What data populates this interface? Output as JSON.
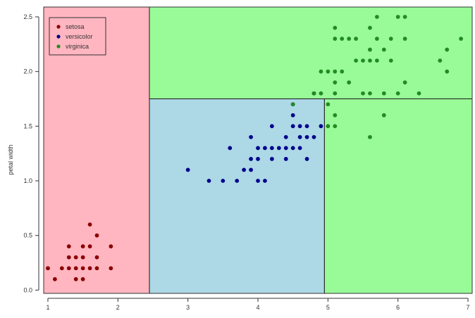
{
  "chart_data": {
    "type": "scatter",
    "title": "",
    "xlabel": "",
    "ylabel": "petal width",
    "xlim": [
      1.0,
      7.0
    ],
    "ylim": [
      0.0,
      2.5
    ],
    "xlim_plot": [
      0.94,
      7.06
    ],
    "ylim_plot": [
      -0.03,
      2.59
    ],
    "x_ticks": [
      1,
      2,
      3,
      4,
      5,
      6,
      7
    ],
    "x_tick_labels": [
      "1",
      "2",
      "3",
      "4",
      "5",
      "6",
      "7"
    ],
    "y_ticks": [
      0.0,
      0.5,
      1.0,
      1.5,
      2.0,
      2.5
    ],
    "y_tick_labels": [
      "0.0",
      "0.5",
      "1.0",
      "1.5",
      "2.0",
      "2.5"
    ],
    "grid": false,
    "legend_position": "top-left",
    "regions": [
      {
        "class": "setosa",
        "x": [
          0.94,
          2.45
        ],
        "y": [
          -0.03,
          2.59
        ],
        "color": "#ffb6c1"
      },
      {
        "class": "versicolor",
        "x": [
          2.45,
          4.95
        ],
        "y": [
          -0.03,
          1.75
        ],
        "color": "#add8e6"
      },
      {
        "class": "virginica",
        "x": [
          4.95,
          7.06
        ],
        "y": [
          -0.03,
          1.75
        ],
        "color": "#98fb98"
      },
      {
        "class": "virginica",
        "x": [
          2.45,
          7.06
        ],
        "y": [
          1.75,
          2.59
        ],
        "color": "#98fb98"
      }
    ],
    "series": [
      {
        "name": "setosa",
        "color": "#8b0000",
        "points": [
          [
            1.0,
            0.2
          ],
          [
            1.1,
            0.1
          ],
          [
            1.2,
            0.2
          ],
          [
            1.3,
            0.2
          ],
          [
            1.3,
            0.3
          ],
          [
            1.3,
            0.4
          ],
          [
            1.4,
            0.1
          ],
          [
            1.4,
            0.2
          ],
          [
            1.4,
            0.3
          ],
          [
            1.5,
            0.1
          ],
          [
            1.5,
            0.2
          ],
          [
            1.5,
            0.3
          ],
          [
            1.5,
            0.4
          ],
          [
            1.6,
            0.2
          ],
          [
            1.6,
            0.4
          ],
          [
            1.6,
            0.6
          ],
          [
            1.7,
            0.2
          ],
          [
            1.7,
            0.3
          ],
          [
            1.7,
            0.5
          ],
          [
            1.9,
            0.2
          ],
          [
            1.9,
            0.4
          ]
        ]
      },
      {
        "name": "versicolor",
        "color": "#00008b",
        "points": [
          [
            3.0,
            1.1
          ],
          [
            3.3,
            1.0
          ],
          [
            3.5,
            1.0
          ],
          [
            3.6,
            1.3
          ],
          [
            3.7,
            1.0
          ],
          [
            3.8,
            1.1
          ],
          [
            3.9,
            1.1
          ],
          [
            3.9,
            1.2
          ],
          [
            3.9,
            1.4
          ],
          [
            4.0,
            1.0
          ],
          [
            4.0,
            1.2
          ],
          [
            4.0,
            1.3
          ],
          [
            4.1,
            1.0
          ],
          [
            4.1,
            1.3
          ],
          [
            4.2,
            1.2
          ],
          [
            4.2,
            1.3
          ],
          [
            4.2,
            1.5
          ],
          [
            4.3,
            1.3
          ],
          [
            4.4,
            1.2
          ],
          [
            4.4,
            1.3
          ],
          [
            4.4,
            1.4
          ],
          [
            4.5,
            1.3
          ],
          [
            4.5,
            1.5
          ],
          [
            4.5,
            1.6
          ],
          [
            4.6,
            1.3
          ],
          [
            4.6,
            1.4
          ],
          [
            4.6,
            1.5
          ],
          [
            4.7,
            1.2
          ],
          [
            4.7,
            1.4
          ],
          [
            4.7,
            1.5
          ],
          [
            4.8,
            1.4
          ],
          [
            4.9,
            1.5
          ],
          [
            4.5,
            1.7
          ],
          [
            4.8,
            1.8
          ]
        ]
      },
      {
        "name": "virginica",
        "color": "#228b22",
        "points": [
          [
            4.5,
            1.7
          ],
          [
            4.8,
            1.8
          ],
          [
            4.9,
            1.8
          ],
          [
            4.9,
            2.0
          ],
          [
            5.0,
            1.5
          ],
          [
            5.0,
            1.7
          ],
          [
            5.0,
            2.0
          ],
          [
            5.1,
            1.5
          ],
          [
            5.1,
            1.6
          ],
          [
            5.1,
            1.8
          ],
          [
            5.1,
            1.9
          ],
          [
            5.1,
            2.0
          ],
          [
            5.1,
            2.3
          ],
          [
            5.1,
            2.4
          ],
          [
            5.2,
            2.0
          ],
          [
            5.2,
            2.3
          ],
          [
            5.3,
            1.9
          ],
          [
            5.3,
            2.3
          ],
          [
            5.4,
            2.1
          ],
          [
            5.4,
            2.3
          ],
          [
            5.5,
            1.8
          ],
          [
            5.5,
            2.1
          ],
          [
            5.6,
            1.4
          ],
          [
            5.6,
            1.8
          ],
          [
            5.6,
            2.1
          ],
          [
            5.6,
            2.2
          ],
          [
            5.6,
            2.4
          ],
          [
            5.7,
            2.1
          ],
          [
            5.7,
            2.3
          ],
          [
            5.7,
            2.5
          ],
          [
            5.8,
            1.6
          ],
          [
            5.8,
            1.8
          ],
          [
            5.8,
            2.2
          ],
          [
            5.9,
            2.1
          ],
          [
            5.9,
            2.3
          ],
          [
            6.0,
            1.8
          ],
          [
            6.0,
            2.5
          ],
          [
            6.1,
            1.9
          ],
          [
            6.1,
            2.3
          ],
          [
            6.1,
            2.5
          ],
          [
            6.3,
            1.8
          ],
          [
            6.6,
            2.1
          ],
          [
            6.7,
            2.0
          ],
          [
            6.7,
            2.2
          ],
          [
            6.9,
            2.3
          ]
        ]
      }
    ],
    "legend": {
      "entries": [
        {
          "label": "setosa",
          "color": "#8b0000"
        },
        {
          "label": "versicolor",
          "color": "#00008b"
        },
        {
          "label": "virginica",
          "color": "#228b22"
        }
      ]
    }
  }
}
